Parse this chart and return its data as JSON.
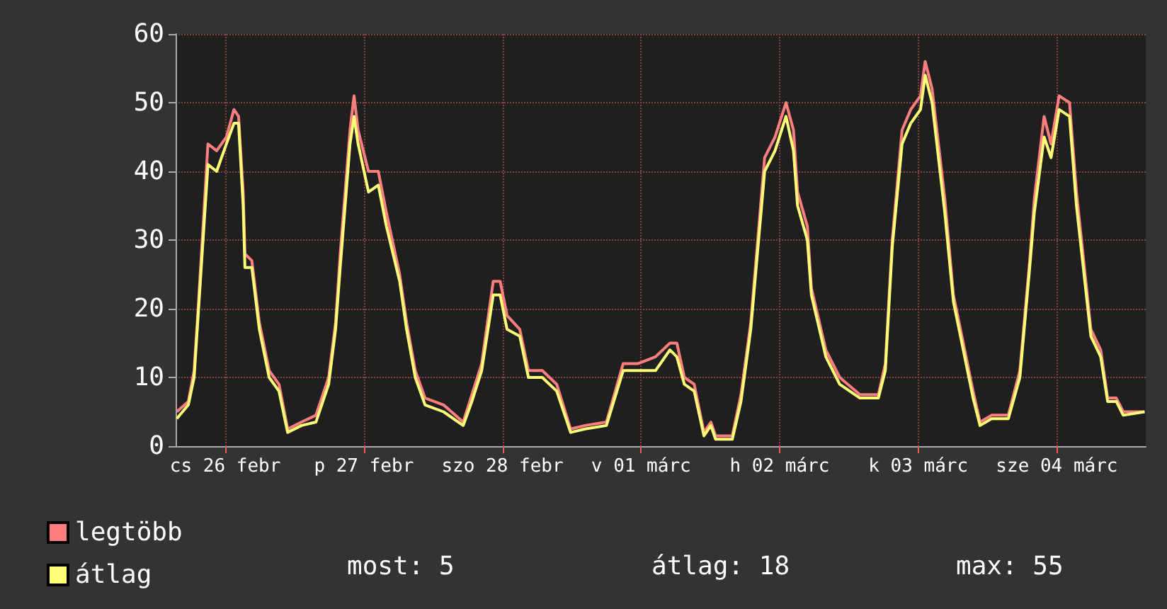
{
  "chart_data": {
    "type": "line",
    "annotations": [
      "most: 5",
      "átlag: 18",
      "max: 55"
    ],
    "x": [
      "--02-26T03:36",
      "--02-26T05:36",
      "--02-26T06:36",
      "--02-26T07:18",
      "--02-26T09:00",
      "--02-26T10:30",
      "--02-26T12:12",
      "--02-26T13:30",
      "--02-26T14:18",
      "--02-26T15:06",
      "--02-26T15:24",
      "--02-26T16:36",
      "--02-26T17:54",
      "--02-26T19:36",
      "--02-26T21:18",
      "--02-26T22:48",
      "--02-27T01:12",
      "--02-27T03:42",
      "--02-27T05:54",
      "--02-27T07:06",
      "--02-27T07:54",
      "--02-27T09:36",
      "--02-27T10:18",
      "--02-27T11:00",
      "--02-27T12:48",
      "--02-27T14:30",
      "--02-27T15:54",
      "--02-27T18:12",
      "--02-27T19:24",
      "--02-27T20:54",
      "--02-27T22:36",
      "--02-28T01:48",
      "--02-28T05:12",
      "--02-28T06:42",
      "--02-28T08:24",
      "--02-28T10:24",
      "--02-28T11:36",
      "--02-28T12:48",
      "--02-28T15:00",
      "--02-28T16:30",
      "--02-28T18:54",
      "--02-28T21:24",
      "--02-28T23:48",
      "--03-01T02:18",
      "--03-01T06:00",
      "--03-01T08:54",
      "--03-01T11:24",
      "--03-01T14:30",
      "--03-01T17:00",
      "--03-01T18:12",
      "--03-01T19:30",
      "--03-01T21:12",
      "--03-01T22:54",
      "--03-02T00:06",
      "--03-02T00:54",
      "--03-02T03:48",
      "--03-02T05:18",
      "--03-02T07:00",
      "--03-02T09:24",
      "--03-02T11:12",
      "--03-02T13:06",
      "--03-02T14:24",
      "--03-02T15:06",
      "--03-02T16:48",
      "--03-02T17:30",
      "--03-02T20:00",
      "--03-02T22:24",
      "--03-03T01:54",
      "--03-03T05:06",
      "--03-03T06:18",
      "--03-03T07:30",
      "--03-03T09:12",
      "--03-03T10:42",
      "--03-03T12:24",
      "--03-03T13:12",
      "--03-03T14:24",
      "--03-03T16:36",
      "--03-03T18:06",
      "--03-03T19:48",
      "--03-03T21:30",
      "--03-03T22:42",
      "--03-04T00:42",
      "--03-04T03:36",
      "--03-04T05:36",
      "--03-04T07:18",
      "--03-04T08:06",
      "--03-04T09:48",
      "--03-04T11:00",
      "--03-04T12:24",
      "--03-04T14:12",
      "--03-04T15:24",
      "--03-04T17:54",
      "--03-04T19:36",
      "--03-04T20:48",
      "--03-04T22:18",
      "--03-04T23:30",
      "--03-05T03:12"
    ],
    "series": [
      {
        "name": "legtöbb",
        "color": "#ff7f7f",
        "values": [
          5,
          6.5,
          11,
          20,
          44,
          43,
          45,
          49,
          48,
          37,
          28,
          27,
          18,
          11,
          9,
          2.5,
          3.5,
          4.5,
          10,
          18,
          28,
          46,
          51,
          46,
          40,
          40,
          34,
          25,
          18,
          11,
          7,
          6,
          3.5,
          7.5,
          12,
          24,
          24,
          19,
          17,
          11,
          11,
          9,
          2.5,
          3,
          3.5,
          12,
          12,
          13,
          15,
          15,
          10,
          9,
          2,
          3.5,
          1.5,
          1.5,
          7.5,
          18,
          42,
          45,
          50,
          46,
          37,
          32,
          23,
          14,
          10,
          7.5,
          7.5,
          12,
          30,
          46,
          49,
          51,
          56,
          52,
          36,
          22,
          15,
          8,
          3.5,
          4.5,
          4.5,
          11,
          27,
          36,
          48,
          44,
          51,
          50,
          37,
          17,
          14,
          7,
          7,
          5,
          5
        ]
      },
      {
        "name": "átlag",
        "color": "#ffff77",
        "values": [
          4,
          6,
          10,
          19,
          41,
          40,
          44,
          47,
          47,
          35,
          26,
          26,
          17,
          10,
          8,
          2,
          3,
          3.5,
          9,
          17,
          26,
          44,
          48,
          44,
          37,
          38,
          32,
          24,
          17,
          10,
          6,
          5,
          3,
          6.5,
          11,
          22,
          22,
          17,
          16,
          10,
          10,
          8,
          2,
          2.5,
          3,
          11,
          11,
          11,
          14,
          13,
          9,
          8,
          1.5,
          3,
          1,
          1,
          6.5,
          17,
          40,
          43,
          48,
          43,
          35,
          30,
          22,
          13,
          9,
          7,
          7,
          11,
          29,
          44,
          47,
          49,
          54,
          50,
          34,
          21,
          14,
          7,
          3,
          4,
          4,
          10,
          26,
          34,
          45,
          42,
          49,
          48,
          35,
          16,
          13,
          6.5,
          6.5,
          4.5,
          5
        ]
      }
    ],
    "xlim": [
      "--02-26T03:24",
      "--03-05T03:24"
    ],
    "xticks": [
      {
        "value": "--02-26T12:00",
        "label": "cs 26 febr"
      },
      {
        "value": "--02-27T12:00",
        "label": "p 27 febr"
      },
      {
        "value": "--02-28T12:00",
        "label": "szo 28 febr"
      },
      {
        "value": "--03-01T12:00",
        "label": "v 01 márc"
      },
      {
        "value": "--03-02T12:00",
        "label": "h 02 márc"
      },
      {
        "value": "--03-03T12:00",
        "label": "k 03 márc"
      },
      {
        "value": "--03-04T12:00",
        "label": "sze 04 márc"
      }
    ],
    "ylim": [
      0,
      60
    ],
    "yticks": [
      0,
      10,
      20,
      30,
      40,
      50,
      60
    ],
    "grid": true,
    "legend": "bottom left",
    "marker": "none",
    "line_style": "solid"
  }
}
